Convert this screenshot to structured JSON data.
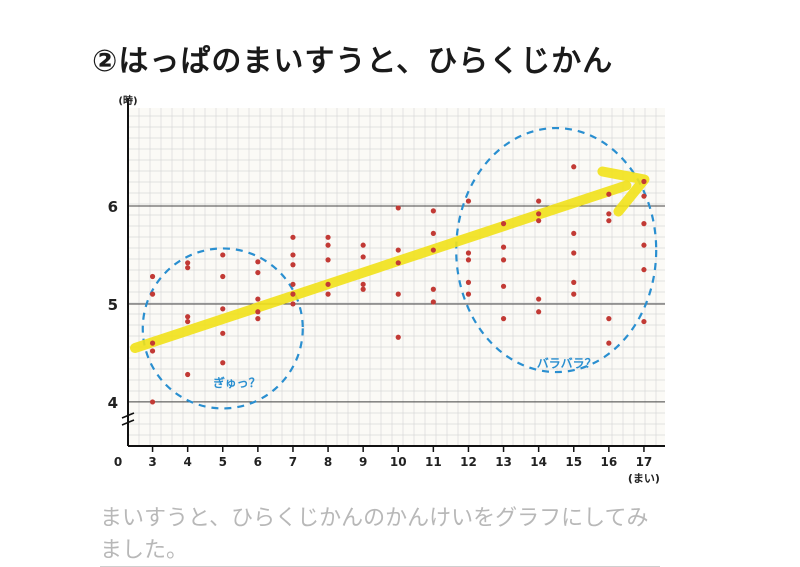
{
  "title": "②はっぱのまいすうと、ひらくじかん",
  "caption": "まいすうと、ひらくじかんのかんけいをグラフにしてみました。",
  "chart_data": {
    "type": "scatter",
    "title": "②はっぱのまいすうと、ひらくじかん",
    "xlabel": "(まい)",
    "ylabel": "(時)",
    "origin_label": "0",
    "x_ticks": [
      "3",
      "4",
      "5",
      "6",
      "7",
      "8",
      "9",
      "10",
      "11",
      "12",
      "13",
      "14",
      "15",
      "16",
      "17"
    ],
    "y_ticks": [
      {
        "value": 4,
        "label": "4"
      },
      {
        "value": 5,
        "label": "5"
      },
      {
        "value": 6,
        "label": "6"
      }
    ],
    "xlim": [
      2.3,
      17.6
    ],
    "ylim": [
      3.55,
      7.0
    ],
    "grid": true,
    "point_color": "#c23a35",
    "trend_color": "#f2e21a",
    "note_color": "#2a8fd0",
    "points": [
      {
        "x": 3,
        "y": 5.28
      },
      {
        "x": 3,
        "y": 5.1
      },
      {
        "x": 3,
        "y": 4.6
      },
      {
        "x": 3,
        "y": 4.52
      },
      {
        "x": 3,
        "y": 4.0
      },
      {
        "x": 4,
        "y": 5.42
      },
      {
        "x": 4,
        "y": 5.37
      },
      {
        "x": 4,
        "y": 4.87
      },
      {
        "x": 4,
        "y": 4.82
      },
      {
        "x": 4,
        "y": 4.28
      },
      {
        "x": 5,
        "y": 5.5
      },
      {
        "x": 5,
        "y": 5.28
      },
      {
        "x": 5,
        "y": 4.95
      },
      {
        "x": 5,
        "y": 4.7
      },
      {
        "x": 5,
        "y": 4.4
      },
      {
        "x": 6,
        "y": 5.43
      },
      {
        "x": 6,
        "y": 5.32
      },
      {
        "x": 6,
        "y": 5.05
      },
      {
        "x": 6,
        "y": 4.92
      },
      {
        "x": 6,
        "y": 4.85
      },
      {
        "x": 7,
        "y": 5.68
      },
      {
        "x": 7,
        "y": 5.5
      },
      {
        "x": 7,
        "y": 5.4
      },
      {
        "x": 7,
        "y": 5.2
      },
      {
        "x": 7,
        "y": 5.1
      },
      {
        "x": 7,
        "y": 5.0
      },
      {
        "x": 8,
        "y": 5.68
      },
      {
        "x": 8,
        "y": 5.6
      },
      {
        "x": 8,
        "y": 5.45
      },
      {
        "x": 8,
        "y": 5.2
      },
      {
        "x": 8,
        "y": 5.1
      },
      {
        "x": 9,
        "y": 5.6
      },
      {
        "x": 9,
        "y": 5.48
      },
      {
        "x": 9,
        "y": 5.2
      },
      {
        "x": 9,
        "y": 5.15
      },
      {
        "x": 10,
        "y": 5.98
      },
      {
        "x": 10,
        "y": 5.55
      },
      {
        "x": 10,
        "y": 5.42
      },
      {
        "x": 10,
        "y": 5.1
      },
      {
        "x": 10,
        "y": 4.66
      },
      {
        "x": 11,
        "y": 5.95
      },
      {
        "x": 11,
        "y": 5.72
      },
      {
        "x": 11,
        "y": 5.55
      },
      {
        "x": 11,
        "y": 5.15
      },
      {
        "x": 11,
        "y": 5.02
      },
      {
        "x": 12,
        "y": 6.05
      },
      {
        "x": 12,
        "y": 5.52
      },
      {
        "x": 12,
        "y": 5.45
      },
      {
        "x": 12,
        "y": 5.22
      },
      {
        "x": 12,
        "y": 5.1
      },
      {
        "x": 13,
        "y": 5.82
      },
      {
        "x": 13,
        "y": 5.58
      },
      {
        "x": 13,
        "y": 5.45
      },
      {
        "x": 13,
        "y": 5.18
      },
      {
        "x": 13,
        "y": 4.85
      },
      {
        "x": 14,
        "y": 6.05
      },
      {
        "x": 14,
        "y": 5.92
      },
      {
        "x": 14,
        "y": 5.85
      },
      {
        "x": 14,
        "y": 5.05
      },
      {
        "x": 14,
        "y": 4.92
      },
      {
        "x": 15,
        "y": 6.4
      },
      {
        "x": 15,
        "y": 5.72
      },
      {
        "x": 15,
        "y": 5.52
      },
      {
        "x": 15,
        "y": 5.22
      },
      {
        "x": 15,
        "y": 5.1
      },
      {
        "x": 16,
        "y": 6.12
      },
      {
        "x": 16,
        "y": 5.92
      },
      {
        "x": 16,
        "y": 5.85
      },
      {
        "x": 16,
        "y": 4.85
      },
      {
        "x": 16,
        "y": 4.6
      },
      {
        "x": 17,
        "y": 6.25
      },
      {
        "x": 17,
        "y": 6.1
      },
      {
        "x": 17,
        "y": 5.82
      },
      {
        "x": 17,
        "y": 5.6
      },
      {
        "x": 17,
        "y": 5.35
      },
      {
        "x": 17,
        "y": 4.82
      }
    ],
    "trend": {
      "x1": 2.5,
      "y1": 4.55,
      "x2": 16.9,
      "y2": 6.25
    },
    "annotations": [
      {
        "text": "ぎゅっ？",
        "x": 5.4,
        "y": 4.15
      },
      {
        "text": "バラバラ？",
        "x": 14.8,
        "y": 4.35
      }
    ]
  }
}
